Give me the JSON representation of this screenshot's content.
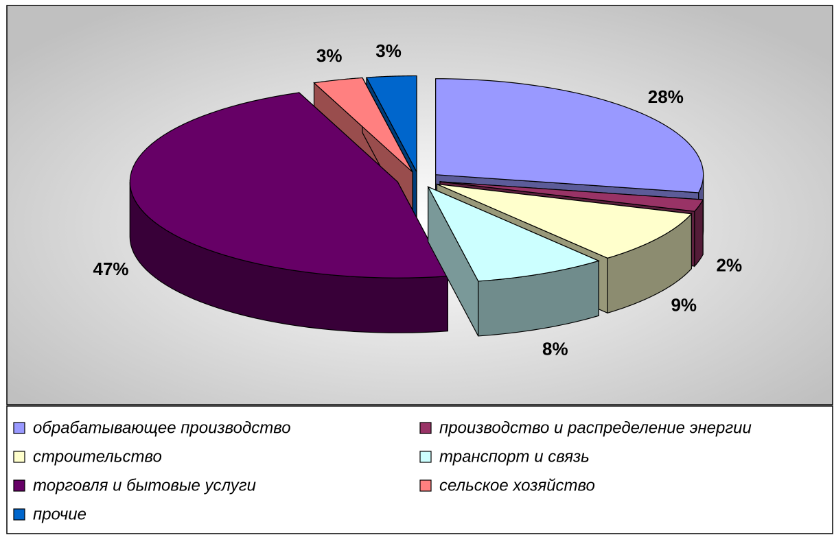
{
  "chart_data": {
    "type": "pie3d",
    "categories": [
      "обрабатывающее производство",
      "производство и распределение энергии",
      "строительство",
      "транспорт и связь",
      "торговля и бытовые услуги",
      "сельское хозяйство",
      "прочие"
    ],
    "values": [
      28,
      2,
      9,
      8,
      47,
      3,
      3
    ],
    "value_labels": [
      "28%",
      "2%",
      "9%",
      "8%",
      "47%",
      "3%",
      "3%"
    ],
    "colors": [
      "#9999ff",
      "#993366",
      "#ffffcc",
      "#ccffff",
      "#660066",
      "#ff8080",
      "#0066cc"
    ]
  }
}
